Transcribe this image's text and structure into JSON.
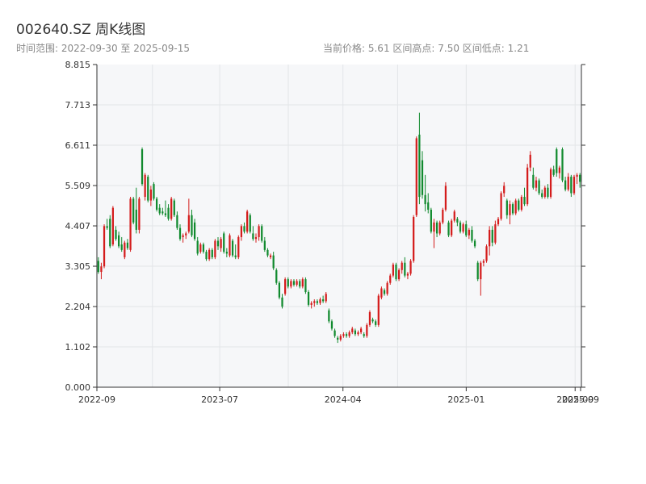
{
  "header": {
    "title": "002640.SZ 周K线图",
    "range_text": "时间范围: 2022-09-30 至 2025-09-15",
    "stats_text": "当前价格: 5.61   区间高点: 7.50   区间低点: 1.21"
  },
  "colors": {
    "up": "#d41c1c",
    "down": "#118a2e",
    "plot_bg": "#f6f7f9",
    "grid": "#e3e5e8",
    "axis": "#333333"
  },
  "chart_data": {
    "type": "candlestick",
    "title": "002640.SZ 周K线图",
    "start_date": "2022-09-30",
    "end_date": "2025-09-15",
    "current_price": 5.61,
    "period_high": 7.5,
    "period_low": 1.21,
    "ylim": [
      0.0,
      8.815
    ],
    "yticks": [
      "0.000",
      "1.102",
      "2.204",
      "3.305",
      "4.407",
      "5.509",
      "6.611",
      "7.713",
      "8.815"
    ],
    "xticks": [
      "2022-09",
      "2023-07",
      "2024-04",
      "2025-01",
      "2025-09",
      "2025-09"
    ],
    "grid": true,
    "candles": [
      [
        3.45,
        3.55,
        3.1,
        3.15
      ],
      [
        3.15,
        3.4,
        2.95,
        3.3
      ],
      [
        3.3,
        4.45,
        3.25,
        4.4
      ],
      [
        4.4,
        4.6,
        4.3,
        4.35
      ],
      [
        4.6,
        4.7,
        3.8,
        3.85
      ],
      [
        3.9,
        4.95,
        3.85,
        4.9
      ],
      [
        4.3,
        4.4,
        4.0,
        4.05
      ],
      [
        4.15,
        4.25,
        3.8,
        3.85
      ],
      [
        3.9,
        4.1,
        3.7,
        3.75
      ],
      [
        3.55,
        4.0,
        3.5,
        3.95
      ],
      [
        3.95,
        4.05,
        3.75,
        3.8
      ],
      [
        3.75,
        5.2,
        3.7,
        5.15
      ],
      [
        5.15,
        5.2,
        4.45,
        4.5
      ],
      [
        4.85,
        5.45,
        4.2,
        4.3
      ],
      [
        4.3,
        5.2,
        4.2,
        5.15
      ],
      [
        6.5,
        6.55,
        5.5,
        5.55
      ],
      [
        5.2,
        5.85,
        5.1,
        5.8
      ],
      [
        5.75,
        5.8,
        5.05,
        5.1
      ],
      [
        5.1,
        5.5,
        4.95,
        5.4
      ],
      [
        5.55,
        5.6,
        5.1,
        5.15
      ],
      [
        5.15,
        5.2,
        4.8,
        4.85
      ],
      [
        4.9,
        5.0,
        4.7,
        4.75
      ],
      [
        4.8,
        4.9,
        4.7,
        4.75
      ],
      [
        4.75,
        5.1,
        4.65,
        4.7
      ],
      [
        4.9,
        5.0,
        4.55,
        4.6
      ],
      [
        4.6,
        5.2,
        4.55,
        5.15
      ],
      [
        5.1,
        5.15,
        4.65,
        4.7
      ],
      [
        4.7,
        4.8,
        4.3,
        4.35
      ],
      [
        4.35,
        4.45,
        4.0,
        4.05
      ],
      [
        4.1,
        4.2,
        3.95,
        4.15
      ],
      [
        4.15,
        4.25,
        4.05,
        4.2
      ],
      [
        4.25,
        5.15,
        4.2,
        4.7
      ],
      [
        4.7,
        4.85,
        4.1,
        4.15
      ],
      [
        4.5,
        4.6,
        4.0,
        4.05
      ],
      [
        4.0,
        4.1,
        3.6,
        3.65
      ],
      [
        3.7,
        3.95,
        3.65,
        3.9
      ],
      [
        3.9,
        3.95,
        3.65,
        3.7
      ],
      [
        3.7,
        3.75,
        3.45,
        3.5
      ],
      [
        3.5,
        3.8,
        3.45,
        3.75
      ],
      [
        3.75,
        3.8,
        3.5,
        3.55
      ],
      [
        3.55,
        4.05,
        3.5,
        4.0
      ],
      [
        4.0,
        4.1,
        3.75,
        3.85
      ],
      [
        3.8,
        4.1,
        3.7,
        4.05
      ],
      [
        4.2,
        4.25,
        3.65,
        3.7
      ],
      [
        3.7,
        3.8,
        3.55,
        3.65
      ],
      [
        3.6,
        4.2,
        3.55,
        4.15
      ],
      [
        4.0,
        4.05,
        3.55,
        3.6
      ],
      [
        3.6,
        3.9,
        3.5,
        3.55
      ],
      [
        3.55,
        4.15,
        3.5,
        4.1
      ],
      [
        4.1,
        4.45,
        4.0,
        4.4
      ],
      [
        4.4,
        4.5,
        4.2,
        4.25
      ],
      [
        4.25,
        4.85,
        4.2,
        4.8
      ],
      [
        4.7,
        4.75,
        4.2,
        4.25
      ],
      [
        4.2,
        4.4,
        4.0,
        4.05
      ],
      [
        4.05,
        4.2,
        3.95,
        4.1
      ],
      [
        4.1,
        4.45,
        4.0,
        4.4
      ],
      [
        4.4,
        4.45,
        3.95,
        4.0
      ],
      [
        4.0,
        4.1,
        3.7,
        3.75
      ],
      [
        3.75,
        3.8,
        3.55,
        3.6
      ],
      [
        3.55,
        3.65,
        3.5,
        3.6
      ],
      [
        3.6,
        3.7,
        3.2,
        3.25
      ],
      [
        3.2,
        3.25,
        2.8,
        2.85
      ],
      [
        2.85,
        2.9,
        2.4,
        2.45
      ],
      [
        2.45,
        2.55,
        2.15,
        2.2
      ],
      [
        2.55,
        3.0,
        2.5,
        2.95
      ],
      [
        2.95,
        3.0,
        2.7,
        2.75
      ],
      [
        2.75,
        2.95,
        2.7,
        2.9
      ],
      [
        2.9,
        2.95,
        2.75,
        2.8
      ],
      [
        2.8,
        2.95,
        2.75,
        2.9
      ],
      [
        2.9,
        2.95,
        2.7,
        2.75
      ],
      [
        2.75,
        3.0,
        2.7,
        2.95
      ],
      [
        2.95,
        3.0,
        2.55,
        2.6
      ],
      [
        2.6,
        2.65,
        2.2,
        2.25
      ],
      [
        2.25,
        2.35,
        2.15,
        2.3
      ],
      [
        2.3,
        2.4,
        2.2,
        2.35
      ],
      [
        2.35,
        2.4,
        2.25,
        2.3
      ],
      [
        2.3,
        2.45,
        2.25,
        2.4
      ],
      [
        2.4,
        2.5,
        2.3,
        2.35
      ],
      [
        2.35,
        2.6,
        2.3,
        2.55
      ],
      [
        2.1,
        2.15,
        1.75,
        1.8
      ],
      [
        1.8,
        1.85,
        1.55,
        1.6
      ],
      [
        1.55,
        1.6,
        1.35,
        1.4
      ],
      [
        1.35,
        1.4,
        1.21,
        1.3
      ],
      [
        1.3,
        1.45,
        1.25,
        1.4
      ],
      [
        1.4,
        1.5,
        1.35,
        1.45
      ],
      [
        1.45,
        1.5,
        1.35,
        1.4
      ],
      [
        1.4,
        1.55,
        1.35,
        1.5
      ],
      [
        1.5,
        1.65,
        1.45,
        1.6
      ],
      [
        1.55,
        1.6,
        1.4,
        1.45
      ],
      [
        1.45,
        1.55,
        1.4,
        1.5
      ],
      [
        1.5,
        1.65,
        1.45,
        1.6
      ],
      [
        1.45,
        1.5,
        1.35,
        1.4
      ],
      [
        1.4,
        1.75,
        1.35,
        1.7
      ],
      [
        1.7,
        2.1,
        1.65,
        2.05
      ],
      [
        1.85,
        1.9,
        1.75,
        1.8
      ],
      [
        1.8,
        1.85,
        1.65,
        1.7
      ],
      [
        1.7,
        2.55,
        1.65,
        2.5
      ],
      [
        2.45,
        2.75,
        2.4,
        2.7
      ],
      [
        2.65,
        2.7,
        2.5,
        2.55
      ],
      [
        2.55,
        2.9,
        2.5,
        2.85
      ],
      [
        2.85,
        3.1,
        2.8,
        3.05
      ],
      [
        3.05,
        3.4,
        3.0,
        3.35
      ],
      [
        3.35,
        3.4,
        2.9,
        2.95
      ],
      [
        2.95,
        3.25,
        2.9,
        3.2
      ],
      [
        3.2,
        3.45,
        3.1,
        3.4
      ],
      [
        3.4,
        3.55,
        3.0,
        3.05
      ],
      [
        3.05,
        3.15,
        2.95,
        3.1
      ],
      [
        3.1,
        3.5,
        3.05,
        3.45
      ],
      [
        3.45,
        4.7,
        3.4,
        4.65
      ],
      [
        4.7,
        6.85,
        4.65,
        6.8
      ],
      [
        6.9,
        7.5,
        5.0,
        5.2
      ],
      [
        6.2,
        6.45,
        5.15,
        5.25
      ],
      [
        5.25,
        5.8,
        4.8,
        5.0
      ],
      [
        5.05,
        5.3,
        4.75,
        4.85
      ],
      [
        4.85,
        4.9,
        4.2,
        4.25
      ],
      [
        4.25,
        4.6,
        3.8,
        4.5
      ],
      [
        4.5,
        4.55,
        4.1,
        4.2
      ],
      [
        4.2,
        4.55,
        4.15,
        4.5
      ],
      [
        4.5,
        4.9,
        4.45,
        4.85
      ],
      [
        4.85,
        5.6,
        4.8,
        5.5
      ],
      [
        4.5,
        4.55,
        4.1,
        4.15
      ],
      [
        4.15,
        4.6,
        4.1,
        4.55
      ],
      [
        4.55,
        4.85,
        4.5,
        4.8
      ],
      [
        4.6,
        4.65,
        4.4,
        4.5
      ],
      [
        4.5,
        4.55,
        4.2,
        4.25
      ],
      [
        4.25,
        4.5,
        4.2,
        4.45
      ],
      [
        4.45,
        4.55,
        4.1,
        4.15
      ],
      [
        4.15,
        4.35,
        4.05,
        4.3
      ],
      [
        4.3,
        4.4,
        3.95,
        4.0
      ],
      [
        4.0,
        4.05,
        3.8,
        3.85
      ],
      [
        3.4,
        3.45,
        2.9,
        2.95
      ],
      [
        2.95,
        3.45,
        2.5,
        3.4
      ],
      [
        3.4,
        3.5,
        3.3,
        3.45
      ],
      [
        3.45,
        3.9,
        3.4,
        3.85
      ],
      [
        3.85,
        4.4,
        3.6,
        4.3
      ],
      [
        4.3,
        4.4,
        3.85,
        3.95
      ],
      [
        3.95,
        4.55,
        3.9,
        4.45
      ],
      [
        4.45,
        4.65,
        4.4,
        4.6
      ],
      [
        4.6,
        5.35,
        4.55,
        5.3
      ],
      [
        5.3,
        5.6,
        5.2,
        5.5
      ],
      [
        5.1,
        5.15,
        4.6,
        4.7
      ],
      [
        4.7,
        5.1,
        4.45,
        5.0
      ],
      [
        5.0,
        5.05,
        4.7,
        4.75
      ],
      [
        4.75,
        5.15,
        4.7,
        5.1
      ],
      [
        5.1,
        5.15,
        4.8,
        4.85
      ],
      [
        4.85,
        5.25,
        4.8,
        5.2
      ],
      [
        5.2,
        5.45,
        4.95,
        5.0
      ],
      [
        5.0,
        6.1,
        4.95,
        6.0
      ],
      [
        6.0,
        6.45,
        5.9,
        6.35
      ],
      [
        5.8,
        6.0,
        5.4,
        5.45
      ],
      [
        5.45,
        5.75,
        5.35,
        5.65
      ],
      [
        5.65,
        5.7,
        5.25,
        5.3
      ],
      [
        5.3,
        5.4,
        5.15,
        5.2
      ],
      [
        5.2,
        5.5,
        5.15,
        5.45
      ],
      [
        5.45,
        5.55,
        5.15,
        5.2
      ],
      [
        5.2,
        6.0,
        5.15,
        5.95
      ],
      [
        5.95,
        6.05,
        5.75,
        5.8
      ],
      [
        6.5,
        6.55,
        5.75,
        5.85
      ],
      [
        5.85,
        6.05,
        5.7,
        6.0
      ],
      [
        6.5,
        6.55,
        5.6,
        5.65
      ],
      [
        5.65,
        5.75,
        5.35,
        5.4
      ],
      [
        5.4,
        5.85,
        5.35,
        5.75
      ],
      [
        5.75,
        5.8,
        5.2,
        5.3
      ],
      [
        5.3,
        5.8,
        5.25,
        5.75
      ],
      [
        5.75,
        5.85,
        5.55,
        5.8
      ],
      [
        5.8,
        5.85,
        5.45,
        5.61
      ]
    ]
  }
}
